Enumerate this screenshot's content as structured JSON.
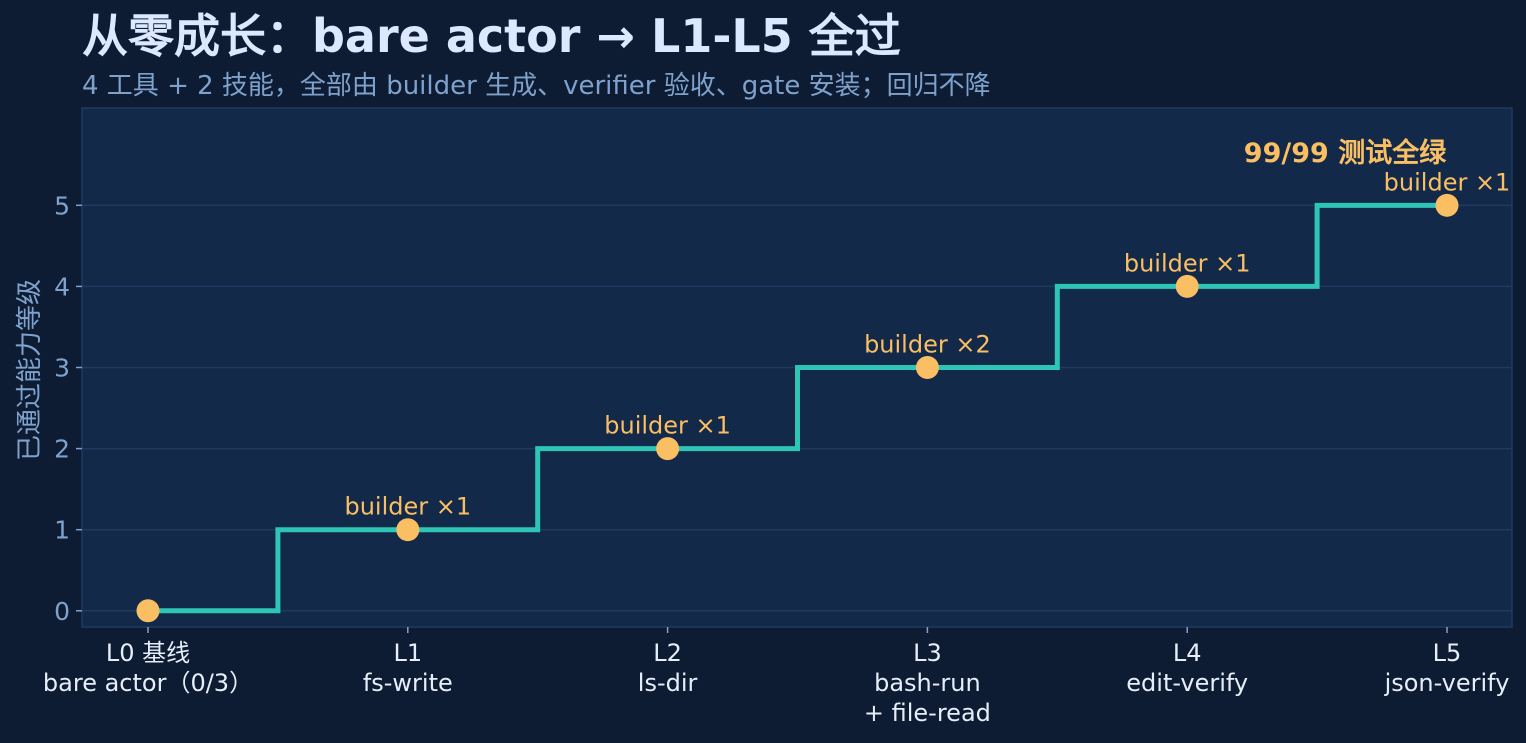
{
  "colors": {
    "background": "#0d1b33",
    "plot_background": "#13294a",
    "grid": "#1e3a5f",
    "step_line": "#2ec4b6",
    "marker": "#fbbf63",
    "annotation": "#fbbf63",
    "title": "#dce8ff",
    "subtitle": "#7fa2cc",
    "tick_text": "#7fa2cc",
    "category_text": "#e6eef9"
  },
  "chart_data": {
    "type": "line",
    "style": "step",
    "title": "从零成长：bare actor → L1-L5 全过",
    "subtitle": "4 工具 + 2 技能，全部由 builder 生成、verifier 验收、gate 安装；回归不降",
    "xlabel": "",
    "ylabel": "已通过能力等级",
    "ylim": [
      -0.2,
      6.2
    ],
    "yticks": [
      0,
      1,
      2,
      3,
      4,
      5
    ],
    "grid": true,
    "categories": [
      {
        "line1": "L0 基线",
        "line2": "bare actor（0/3）",
        "line3": ""
      },
      {
        "line1": "L1",
        "line2": "fs-write",
        "line3": ""
      },
      {
        "line1": "L2",
        "line2": "ls-dir",
        "line3": ""
      },
      {
        "line1": "L3",
        "line2": "bash-run",
        "line3": "+ file-read"
      },
      {
        "line1": "L4",
        "line2": "edit-verify",
        "line3": ""
      },
      {
        "line1": "L5",
        "line2": "json-verify",
        "line3": ""
      }
    ],
    "values": [
      0,
      1,
      2,
      3,
      4,
      5
    ],
    "point_annotations": [
      "",
      "builder ×1",
      "builder ×1",
      "builder ×2",
      "builder ×1",
      "builder ×1"
    ],
    "highlight_annotation": "99/99 测试全绿"
  }
}
